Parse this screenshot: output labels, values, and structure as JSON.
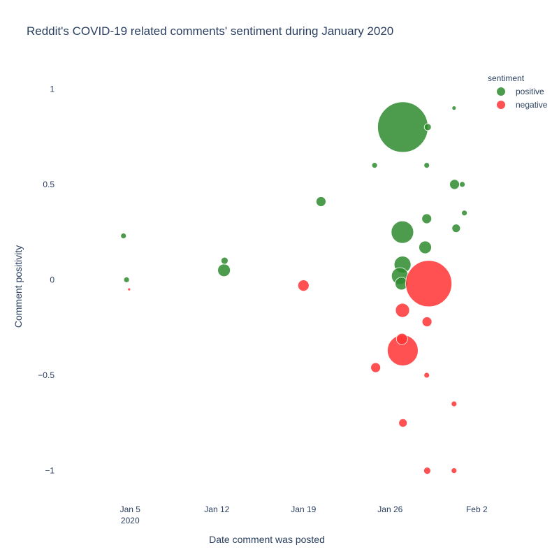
{
  "chart_data": {
    "type": "scatter",
    "title": "Reddit's COVID-19 related comments' sentiment during January 2020",
    "xlabel": "Date comment was posted",
    "ylabel": "Comment positivity",
    "x_axis_type": "date",
    "xlim": [
      "2019-12-30",
      "2020-02-03"
    ],
    "ylim": [
      -1.17,
      1.1
    ],
    "x_ticks": [
      {
        "value": "2020-01-05",
        "label": "Jan 5",
        "sublabel": "2020"
      },
      {
        "value": "2020-01-12",
        "label": "Jan 12",
        "sublabel": ""
      },
      {
        "value": "2020-01-19",
        "label": "Jan 19",
        "sublabel": ""
      },
      {
        "value": "2020-01-26",
        "label": "Jan 26",
        "sublabel": ""
      },
      {
        "value": "2020-02-02",
        "label": "Feb 2",
        "sublabel": ""
      }
    ],
    "y_ticks": [
      {
        "value": 1,
        "label": "1"
      },
      {
        "value": 0.5,
        "label": "0.5"
      },
      {
        "value": 0,
        "label": "0"
      },
      {
        "value": -0.5,
        "label": "−0.5"
      },
      {
        "value": -1,
        "label": "−1"
      }
    ],
    "grid": false,
    "legend": {
      "title": "sentiment",
      "placement": "top-right"
    },
    "marker_size_meaning": "relative comment score",
    "series": [
      {
        "name": "positive",
        "color": "#2e8b2e",
        "points": [
          {
            "x": "2020-01-27 00:40",
            "y": 0.8,
            "size": 36
          },
          {
            "x": "2020-01-26 23:50",
            "y": 0.25,
            "size": 16
          },
          {
            "x": "2020-01-27 00:10",
            "y": 0.08,
            "size": 12
          },
          {
            "x": "2020-01-26 19:00",
            "y": 0.02,
            "size": 12
          },
          {
            "x": "2020-01-26 22:00",
            "y": -0.02,
            "size": 9
          },
          {
            "x": "2020-01-28 20:00",
            "y": 0.17,
            "size": 9
          },
          {
            "x": "2020-01-28 23:00",
            "y": 0.32,
            "size": 7
          },
          {
            "x": "2020-01-12 14:00",
            "y": 0.05,
            "size": 9
          },
          {
            "x": "2020-01-12 15:00",
            "y": 0.1,
            "size": 5
          },
          {
            "x": "2020-01-20 10:00",
            "y": 0.41,
            "size": 7
          },
          {
            "x": "2020-01-04 11:00",
            "y": 0.23,
            "size": 4
          },
          {
            "x": "2020-01-04 17:00",
            "y": 0.0,
            "size": 4
          },
          {
            "x": "2020-01-24 18:00",
            "y": 0.6,
            "size": 4
          },
          {
            "x": "2020-01-31 05:00",
            "y": 0.5,
            "size": 7
          },
          {
            "x": "2020-01-31 08:00",
            "y": 0.27,
            "size": 6
          },
          {
            "x": "2020-01-31 20:00",
            "y": 0.5,
            "size": 4
          },
          {
            "x": "2020-02-01 00:00",
            "y": 0.35,
            "size": 4
          },
          {
            "x": "2020-01-28 23:00",
            "y": 0.6,
            "size": 4
          },
          {
            "x": "2020-01-31 04:00",
            "y": 0.9,
            "size": 3
          },
          {
            "x": "2020-01-29 01:00",
            "y": 0.8,
            "size": 5
          }
        ]
      },
      {
        "name": "negative",
        "color": "#ff3333",
        "points": [
          {
            "x": "2020-01-29 03:00",
            "y": -0.02,
            "size": 33
          },
          {
            "x": "2020-01-27 00:30",
            "y": -0.37,
            "size": 22
          },
          {
            "x": "2020-01-27 00:00",
            "y": -0.16,
            "size": 10
          },
          {
            "x": "2020-01-26 23:00",
            "y": -0.31,
            "size": 8
          },
          {
            "x": "2020-01-28 23:30",
            "y": -0.22,
            "size": 7
          },
          {
            "x": "2020-01-19 00:00",
            "y": -0.03,
            "size": 8
          },
          {
            "x": "2020-01-24 20:00",
            "y": -0.46,
            "size": 7
          },
          {
            "x": "2020-01-27 01:00",
            "y": -0.75,
            "size": 6
          },
          {
            "x": "2020-01-29 00:00",
            "y": -1.0,
            "size": 5
          },
          {
            "x": "2020-01-31 04:00",
            "y": -0.65,
            "size": 4
          },
          {
            "x": "2020-01-31 04:00",
            "y": -1.0,
            "size": 4
          },
          {
            "x": "2020-01-28 23:00",
            "y": -0.5,
            "size": 4
          },
          {
            "x": "2020-01-04 22:00",
            "y": -0.05,
            "size": 2
          }
        ]
      }
    ]
  }
}
